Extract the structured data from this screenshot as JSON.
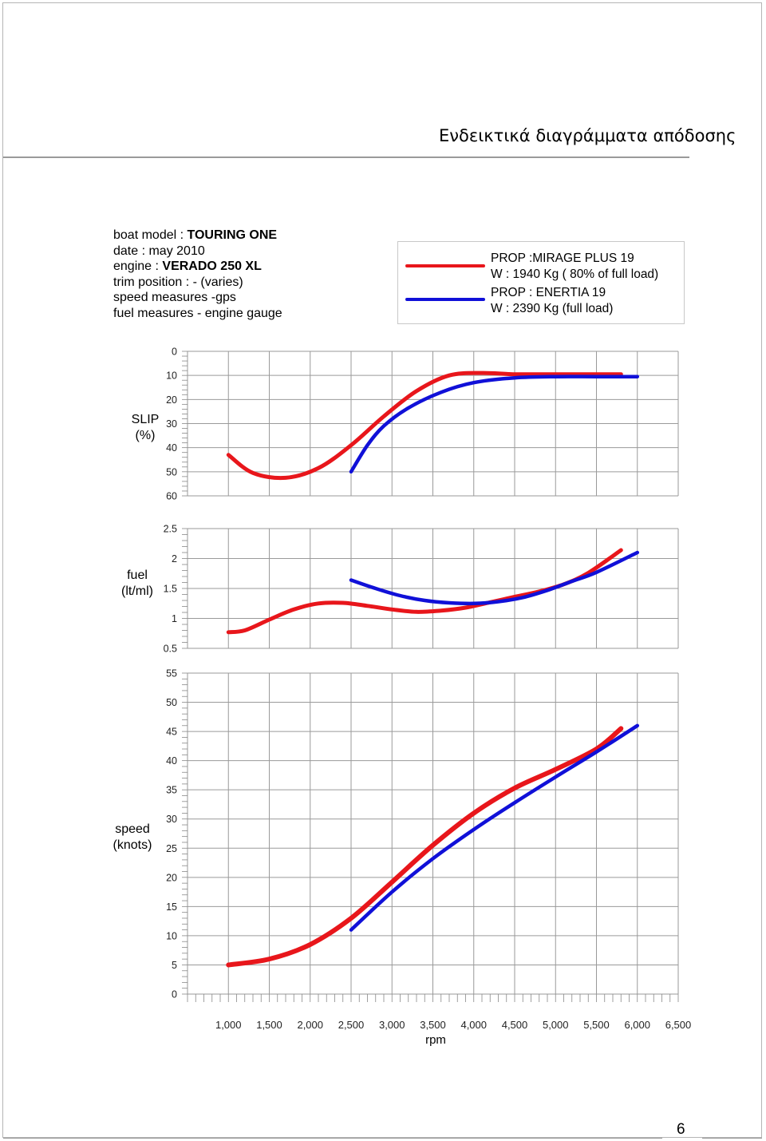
{
  "page": {
    "header_title": "Ενδεικτικά διαγράμματα απόδοσης",
    "page_number": "6"
  },
  "info": {
    "boat_model_label": "boat model : ",
    "boat_model_value": "TOURING ONE",
    "date": "date : may 2010",
    "engine_label": "engine : ",
    "engine_value": "VERADO 250 XL",
    "trim": "trim position : - (varies)",
    "speed_measures": "speed measures -gps",
    "fuel_measures": "fuel measures - engine gauge"
  },
  "legend": {
    "series1_prop": "PROP :MIRAGE PLUS 19",
    "series1_weight": "W   : 1940 Kg ( 80% of full load)",
    "series2_prop": "PROP : ENERTIA 19",
    "series2_weight": "W : 2390 Kg  (full load)"
  },
  "colors": {
    "series1": "#e8161b",
    "series2": "#1010d8",
    "grid": "#9a9a9a"
  },
  "chart_data": [
    {
      "type": "line",
      "ylabel": "SLIP\n(%)",
      "ylim": [
        0,
        60
      ],
      "y_inverted": true,
      "yticks": [
        "0",
        "10",
        "20",
        "30",
        "40",
        "50",
        "60"
      ],
      "xlim": [
        500,
        6500
      ],
      "series": [
        {
          "x": [
            1000,
            1300,
            1700,
            2100,
            2500,
            2900,
            3300,
            3700,
            4100,
            4500,
            5000,
            5500,
            5800
          ],
          "values": [
            43,
            50.5,
            52.5,
            48.5,
            39,
            27,
            16.5,
            10,
            9,
            9.5,
            9.5,
            9.5,
            9.5
          ]
        },
        {
          "x": [
            2500,
            2700,
            2900,
            3200,
            3600,
            4000,
            4500,
            5000,
            5500,
            6000
          ],
          "values": [
            50,
            39,
            31,
            23.5,
            17,
            13,
            11,
            10.5,
            10.5,
            10.5
          ]
        }
      ]
    },
    {
      "type": "line",
      "ylabel": "fuel\n(lt/ml)",
      "ylim": [
        0.5,
        2.5
      ],
      "yticks": [
        "0.5",
        "1",
        "1.5",
        "2",
        "2.5"
      ],
      "xlim": [
        500,
        6500
      ],
      "series": [
        {
          "x": [
            1000,
            1200,
            1500,
            1800,
            2100,
            2400,
            2700,
            3000,
            3300,
            3600,
            3900,
            4200,
            4500,
            4800,
            5100,
            5400,
            5800
          ],
          "values": [
            0.77,
            0.8,
            0.98,
            1.15,
            1.25,
            1.26,
            1.21,
            1.15,
            1.11,
            1.13,
            1.18,
            1.27,
            1.36,
            1.45,
            1.57,
            1.76,
            2.14
          ]
        },
        {
          "x": [
            2500,
            2800,
            3100,
            3400,
            3700,
            4000,
            4300,
            4600,
            4900,
            5200,
            5500,
            6000
          ],
          "values": [
            1.64,
            1.5,
            1.38,
            1.3,
            1.26,
            1.25,
            1.28,
            1.35,
            1.47,
            1.62,
            1.77,
            2.1
          ]
        }
      ]
    },
    {
      "type": "line",
      "ylabel": "speed\n(knots)",
      "ylim": [
        0,
        55
      ],
      "yticks": [
        "0",
        "5",
        "10",
        "15",
        "20",
        "25",
        "30",
        "35",
        "40",
        "45",
        "50",
        "55"
      ],
      "xlim": [
        500,
        6500
      ],
      "xlabel": "rpm",
      "xticks": [
        "1,000",
        "1,500",
        "2,000",
        "2,500",
        "3,000",
        "3,500",
        "4,000",
        "4,500",
        "5,000",
        "5,500",
        "6,000",
        "6,500"
      ],
      "series": [
        {
          "x": [
            1000,
            1500,
            2000,
            2500,
            3000,
            3500,
            4000,
            4500,
            5000,
            5500,
            5800
          ],
          "values": [
            5,
            6,
            8.5,
            13,
            19.2,
            25.5,
            31,
            35.3,
            38.5,
            42,
            45.5
          ]
        },
        {
          "x": [
            2500,
            3000,
            3500,
            4000,
            4500,
            5000,
            5500,
            6000
          ],
          "values": [
            11,
            17.5,
            23.2,
            28.2,
            32.8,
            37.2,
            41.5,
            46
          ]
        }
      ]
    }
  ]
}
